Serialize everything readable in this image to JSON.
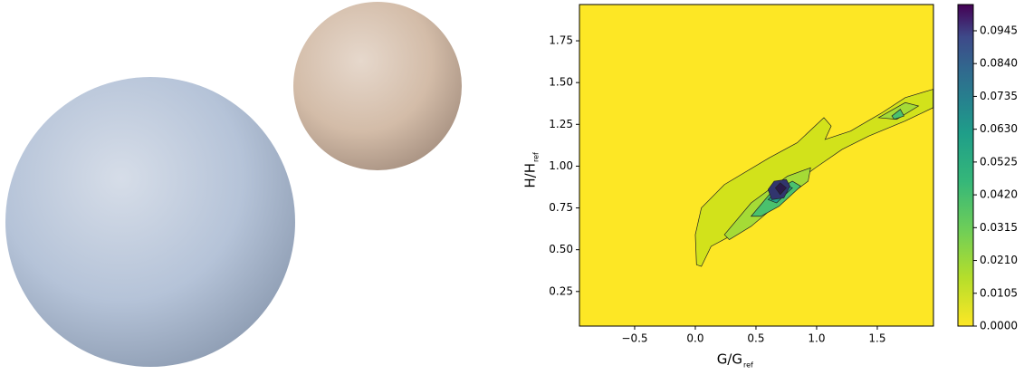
{
  "chart_data": {
    "type": "contour",
    "xlabel": "G/G",
    "xlabel_sub": "ref",
    "ylabel": "H/H",
    "ylabel_sub": "ref",
    "xlim": [
      -0.955,
      1.963
    ],
    "ylim": [
      0.043,
      1.967
    ],
    "clim": [
      0,
      0.1029
    ],
    "xticks": [
      {
        "value": -0.5,
        "label": "−0.5"
      },
      {
        "value": 0,
        "label": "0.0"
      },
      {
        "value": 0.5,
        "label": "0.5"
      },
      {
        "value": 1,
        "label": "1.0"
      },
      {
        "value": 1.5,
        "label": "1.5"
      }
    ],
    "yticks": [
      0.25,
      {
        "value": 0.5,
        "label": "0.50"
      },
      0.75,
      {
        "value": 1,
        "label": "1.00"
      },
      1.25,
      {
        "value": 1.5,
        "label": "1.50"
      },
      1.75
    ],
    "cticks": [
      {
        "value": 0,
        "label": "0.0000"
      },
      {
        "value": 0.0105,
        "label": "0.0105"
      },
      {
        "value": 0.021,
        "label": "0.0210"
      },
      {
        "value": 0.0315,
        "label": "0.0315"
      },
      {
        "value": 0.042,
        "label": "0.0420"
      },
      {
        "value": 0.0525,
        "label": "0.0525"
      },
      {
        "value": 0.063,
        "label": "0.0630"
      },
      {
        "value": 0.0735,
        "label": "0.0735"
      },
      {
        "value": 0.084,
        "label": "0.0840"
      },
      {
        "value": 0.0945,
        "label": "0.0945"
      }
    ],
    "contours": [
      {
        "level": 0.0105,
        "color": "#d2e21b",
        "x": [
          0.01,
          0.0,
          0.05,
          0.24,
          0.61,
          0.84,
          1.06,
          1.12,
          1.07,
          1.28,
          1.54,
          1.73,
          1.96,
          1.96,
          1.73,
          1.43,
          1.21,
          0.99,
          0.84,
          0.69,
          0.46,
          0.31,
          0.13,
          0.05
        ],
        "y": [
          0.41,
          0.59,
          0.75,
          0.89,
          1.05,
          1.14,
          1.29,
          1.24,
          1.16,
          1.21,
          1.32,
          1.41,
          1.46,
          1.35,
          1.27,
          1.18,
          1.1,
          0.99,
          0.91,
          0.83,
          0.7,
          0.59,
          0.52,
          0.4
        ]
      },
      {
        "level": 0.021,
        "color": "#a5db36",
        "x": [
          0.24,
          0.46,
          0.76,
          0.95,
          0.93,
          0.69,
          0.46,
          0.28
        ],
        "y": [
          0.59,
          0.78,
          0.94,
          0.99,
          0.91,
          0.78,
          0.64,
          0.56
        ]
      },
      {
        "level": 0.021,
        "color": "#a5db36",
        "x": [
          1.51,
          1.73,
          1.84,
          1.66
        ],
        "y": [
          1.29,
          1.38,
          1.36,
          1.28
        ]
      },
      {
        "level": 0.0315,
        "color": "#4ac16d",
        "x": [
          0.46,
          0.61,
          0.8,
          0.87,
          0.69,
          0.54
        ],
        "y": [
          0.7,
          0.83,
          0.91,
          0.88,
          0.76,
          0.7
        ]
      },
      {
        "level": 0.0315,
        "color": "#4ac16d",
        "x": [
          1.62,
          1.69,
          1.72,
          1.64
        ],
        "y": [
          1.3,
          1.34,
          1.3,
          1.28
        ]
      },
      {
        "level": 0.042,
        "color": "#1fa187",
        "x": [
          0.6,
          0.72,
          0.8,
          0.67
        ],
        "y": [
          0.8,
          0.89,
          0.87,
          0.78
        ]
      },
      {
        "level": 0.084,
        "color": "#31356e",
        "x": [
          0.6,
          0.65,
          0.75,
          0.78,
          0.73,
          0.63
        ],
        "y": [
          0.86,
          0.91,
          0.92,
          0.88,
          0.81,
          0.8
        ]
      },
      {
        "level": 0.0945,
        "color": "#2b1a4a",
        "x": [
          0.66,
          0.7,
          0.75,
          0.7
        ],
        "y": [
          0.87,
          0.9,
          0.87,
          0.83
        ]
      }
    ]
  }
}
